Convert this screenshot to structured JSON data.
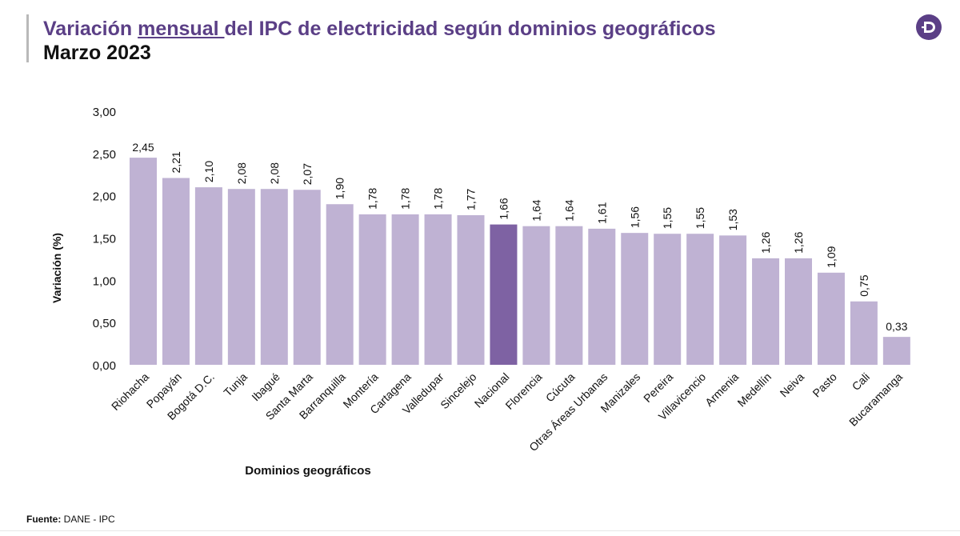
{
  "header": {
    "title_pre": "Variación ",
    "title_underlined": "mensual ",
    "title_post": "del IPC de electricidad según dominios geográficos",
    "subtitle": "Marzo 2023"
  },
  "logo_icon": "dane-logo-icon",
  "source": {
    "label": "Fuente:",
    "text": " DANE - IPC"
  },
  "colors": {
    "bar": "#bfb2d3",
    "highlight": "#7e62a3",
    "title": "#5b3f86"
  },
  "chart_data": {
    "type": "bar",
    "xlabel": "Dominios geográficos",
    "ylabel": "Variación (%)",
    "ylim": [
      0,
      3
    ],
    "yticks": [
      "0,00",
      "0,50",
      "1,00",
      "1,50",
      "2,00",
      "2,50",
      "3,00"
    ],
    "grid": false,
    "highlight": "Nacional",
    "categories": [
      "Riohacha",
      "Popayán",
      "Bogotá D.C.",
      "Tunja",
      "Ibagué",
      "Santa Marta",
      "Barranquilla",
      "Montería",
      "Cartagena",
      "Valledupar",
      "Sincelejo",
      "Nacional",
      "Florencia",
      "Cúcuta",
      "Otras Áreas Urbanas",
      "Manizales",
      "Pereira",
      "Villavicencio",
      "Armenia",
      "Medellín",
      "Neiva",
      "Pasto",
      "Cali",
      "Bucaramanga"
    ],
    "values": [
      2.45,
      2.21,
      2.1,
      2.08,
      2.08,
      2.07,
      1.9,
      1.78,
      1.78,
      1.78,
      1.77,
      1.66,
      1.64,
      1.64,
      1.61,
      1.56,
      1.55,
      1.55,
      1.53,
      1.26,
      1.26,
      1.09,
      0.75,
      0.33
    ],
    "labels": [
      "2,45",
      "2,21",
      "2,10",
      "2,08",
      "2,08",
      "2,07",
      "1,90",
      "1,78",
      "1,78",
      "1,78",
      "1,77",
      "1,66",
      "1,64",
      "1,64",
      "1,61",
      "1,56",
      "1,55",
      "1,55",
      "1,53",
      "1,26",
      "1,26",
      "1,09",
      "0,75",
      "0,33"
    ]
  }
}
